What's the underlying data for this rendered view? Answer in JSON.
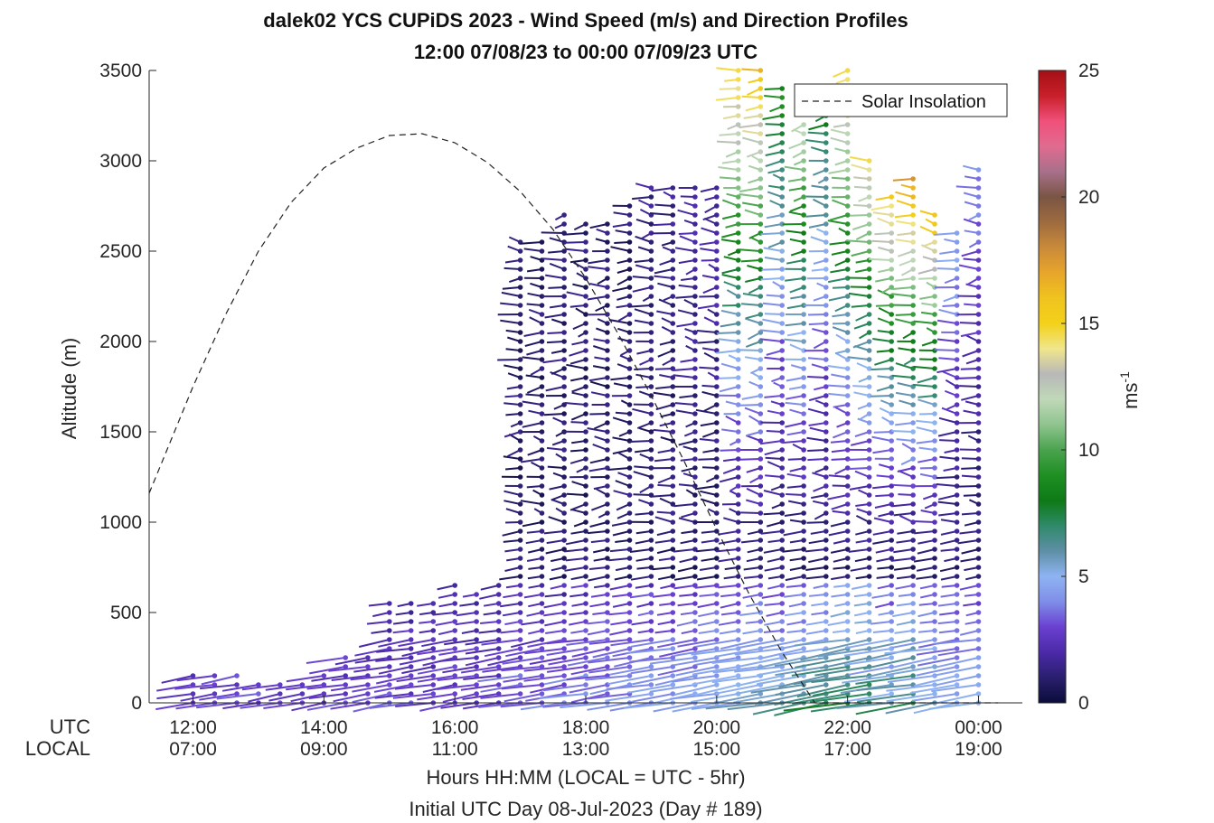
{
  "chart_data": {
    "type": "wind-barb-profile",
    "title_line1": "dalek02 YCS CUPiDS 2023 - Wind Speed (m/s) and Direction Profiles",
    "title_line2": "12:00 07/08/23 to 00:00 07/09/23  UTC",
    "ylabel": "Altitude (m)",
    "ylim": [
      0,
      3500
    ],
    "yticks": [
      "0",
      "500",
      "1000",
      "1500",
      "2000",
      "2500",
      "3000",
      "3500"
    ],
    "xlim_hours_utc": [
      11.33,
      24.67
    ],
    "xticks_utc": [
      "12:00",
      "14:00",
      "16:00",
      "18:00",
      "20:00",
      "22:00",
      "00:00"
    ],
    "xticks_local": [
      "07:00",
      "09:00",
      "11:00",
      "13:00",
      "15:00",
      "17:00",
      "19:00"
    ],
    "row_label_utc": "UTC",
    "row_label_local": "LOCAL",
    "xlabel_line1": "Hours HH:MM  (LOCAL = UTC - 5hr)",
    "xlabel_line2": "Initial UTC Day 08-Jul-2023 (Day # 189)",
    "legend": {
      "entries": [
        "Solar Insolation"
      ],
      "position": "top-right"
    },
    "colorbar": {
      "range": [
        0,
        25
      ],
      "ticks": [
        "0",
        "5",
        "10",
        "15",
        "20",
        "25"
      ],
      "label": "ms",
      "label_exponent": "-1",
      "colors": [
        "#0b0c3a",
        "#2a1f6e",
        "#4b2aa8",
        "#6a40d0",
        "#7f8ee8",
        "#8fb4f2",
        "#5e8fa6",
        "#2f8a6a",
        "#0e7a16",
        "#1f8f23",
        "#4aa34e",
        "#8fc48f",
        "#c0d8b8",
        "#b8b8b8",
        "#f0e68c",
        "#f3d11a",
        "#f0c31e",
        "#e7a52a",
        "#c98a3a",
        "#9e6b3f",
        "#7a5544",
        "#a8708a",
        "#e06b90",
        "#f0507a",
        "#c8202a",
        "#a50f15"
      ]
    },
    "solar_insolation": {
      "series": "Solar Insolation",
      "x_hours_utc": [
        11.33,
        12,
        12.5,
        13,
        13.5,
        14,
        14.5,
        15,
        15.5,
        16,
        16.5,
        17,
        17.5,
        18,
        18.5,
        19,
        19.5,
        20,
        20.5,
        21,
        21.5,
        22,
        22.5,
        23,
        23.5,
        24,
        24.3
      ],
      "y_altitude_scale_m": [
        1160,
        1750,
        2150,
        2500,
        2770,
        2960,
        3070,
        3140,
        3150,
        3100,
        2990,
        2830,
        2620,
        2350,
        2040,
        1700,
        1340,
        960,
        600,
        280,
        0,
        0,
        0,
        0,
        0,
        0,
        0
      ]
    },
    "profiles": {
      "launch_times_utc": [
        12.0,
        12.33,
        12.67,
        13.0,
        13.33,
        13.67,
        14.0,
        14.33,
        14.67,
        15.0,
        15.33,
        15.67,
        16.0,
        16.33,
        16.67,
        17.0,
        17.33,
        17.67,
        18.0,
        18.33,
        18.67,
        19.0,
        19.33,
        19.67,
        20.0,
        20.33,
        20.67,
        21.0,
        21.33,
        21.67,
        22.0,
        22.33,
        22.67,
        23.0,
        23.33,
        23.67,
        24.0
      ],
      "top_altitude_m": [
        150,
        150,
        150,
        140,
        140,
        140,
        150,
        250,
        250,
        580,
        560,
        570,
        650,
        640,
        650,
        2550,
        2560,
        2700,
        2680,
        2650,
        2750,
        2850,
        2850,
        2850,
        2850,
        3500,
        3500,
        3400,
        3200,
        3300,
        3500,
        3000,
        2800,
        2900,
        2700,
        2600,
        2950
      ],
      "surface_speed_ms": [
        2.5,
        2.5,
        2.5,
        2.5,
        2.5,
        2.5,
        2.5,
        2.5,
        2.5,
        2.5,
        2.5,
        2.5,
        2.5,
        2.5,
        2.5,
        3.0,
        3.0,
        3.0,
        3.5,
        3.5,
        3.5,
        4.0,
        4.0,
        4.0,
        4.5,
        4.5,
        5.0,
        5.0,
        5.5,
        6.0,
        7.0,
        7.0,
        5.0,
        6.5,
        5.0,
        4.5,
        4.5
      ],
      "upper_speed_ms": [
        2.0,
        2.0,
        2.0,
        2.0,
        2.0,
        2.0,
        2.0,
        1.5,
        1.5,
        1.5,
        1.5,
        1.5,
        1.5,
        1.5,
        1.5,
        1.0,
        1.0,
        1.0,
        1.0,
        1.0,
        1.0,
        1.5,
        1.5,
        2.0,
        2.0,
        15.0,
        16.0,
        9.0,
        12.0,
        8.0,
        15.0,
        14.0,
        15.0,
        17.0,
        16.0,
        5.0,
        4.0
      ]
    }
  }
}
